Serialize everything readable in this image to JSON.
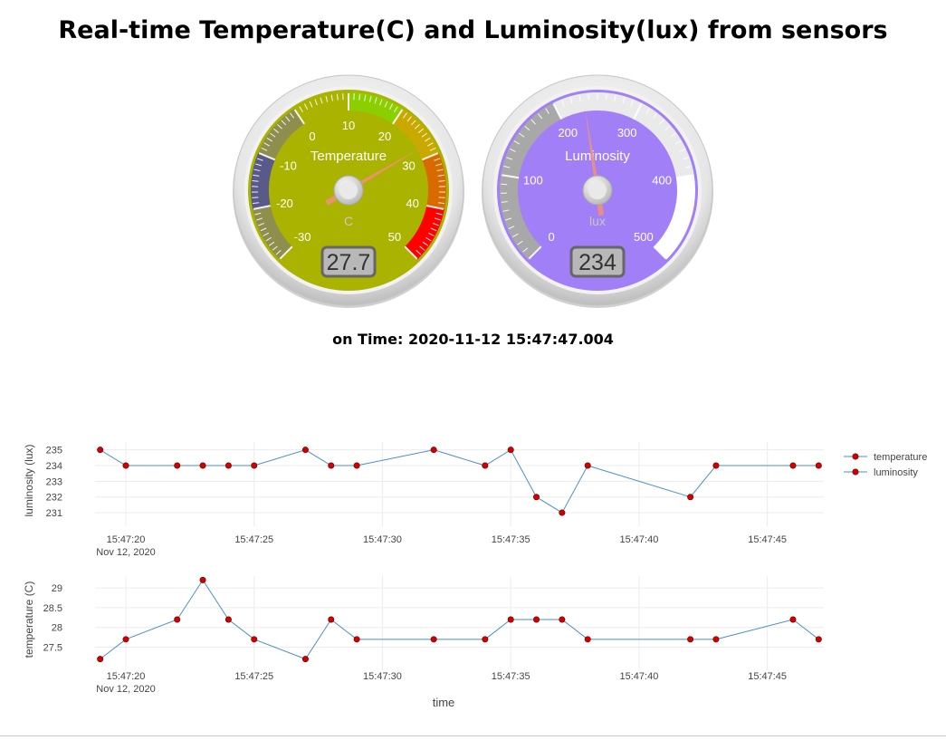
{
  "page": {
    "title": "Real-time Temperature(C) and Luminosity(lux) from sensors",
    "time_prefix": "on Time:",
    "time_value": "2020-11-12 15:47:47.004"
  },
  "gauges": [
    {
      "id": "temperature",
      "title": "Temperature",
      "units": "C",
      "value": 27.7,
      "value_text": "27.7",
      "min": -30,
      "max": 50,
      "tick_labels": [
        "-30",
        "-20",
        "-10",
        "0",
        "10",
        "20",
        "30",
        "40",
        "50"
      ],
      "plate_color": "#aab300",
      "highlights": [
        {
          "from": -30,
          "to": -20,
          "color": "#8e8e4e"
        },
        {
          "from": -20,
          "to": -10,
          "color": "#5a5a8a"
        },
        {
          "from": -10,
          "to": 0,
          "color": "#8e8e4e"
        },
        {
          "from": 10,
          "to": 20,
          "color": "#8ccf00"
        },
        {
          "from": 20,
          "to": 30,
          "color": "#c9a800"
        },
        {
          "from": 30,
          "to": 40,
          "color": "#d96a00"
        },
        {
          "from": 40,
          "to": 50,
          "color": "#ff0000"
        }
      ]
    },
    {
      "id": "luminosity",
      "title": "Luminosity",
      "units": "lux",
      "value": 234,
      "value_text": "234",
      "min": 0,
      "max": 500,
      "tick_labels": [
        "0",
        "100",
        "200",
        "300",
        "400",
        "500"
      ],
      "plate_color": "#a17ff7",
      "highlights": [
        {
          "from": 0,
          "to": 200,
          "color": "#a8a8a8"
        },
        {
          "from": 200,
          "to": 400,
          "color": "#eaeaea"
        },
        {
          "from": 400,
          "to": 500,
          "color": "#ffffff"
        }
      ]
    }
  ],
  "chart_data": [
    {
      "type": "line",
      "xlabel": "",
      "ylabel": "luminosity (lux)",
      "x_ticks": [
        "15:47:20\nNov 12, 2020",
        "15:47:25",
        "15:47:30",
        "15:47:35",
        "15:47:40",
        "15:47:45"
      ],
      "y_ticks": [
        231,
        232,
        233,
        234,
        235
      ],
      "x": [
        "15:47:19",
        "15:47:20",
        "15:47:22",
        "15:47:23",
        "15:47:24",
        "15:47:25",
        "15:47:27",
        "15:47:28",
        "15:47:29",
        "15:47:32",
        "15:47:34",
        "15:47:35",
        "15:47:36",
        "15:47:37",
        "15:47:38",
        "15:47:42",
        "15:47:43",
        "15:47:46",
        "15:47:47"
      ],
      "values": [
        235,
        234,
        234,
        234,
        234,
        234,
        235,
        234,
        234,
        235,
        234,
        235,
        232,
        231,
        234,
        232,
        234,
        234,
        234
      ],
      "grid": true,
      "line_color": "#4a90c4",
      "marker_color": "#d40000"
    },
    {
      "type": "line",
      "xlabel": "time",
      "ylabel": "temperature (C)",
      "x_ticks": [
        "15:47:20\nNov 12, 2020",
        "15:47:25",
        "15:47:30",
        "15:47:35",
        "15:47:40",
        "15:47:45"
      ],
      "y_ticks": [
        27.5,
        28,
        28.5,
        29
      ],
      "x": [
        "15:47:19",
        "15:47:20",
        "15:47:22",
        "15:47:23",
        "15:47:24",
        "15:47:25",
        "15:47:27",
        "15:47:28",
        "15:47:29",
        "15:47:32",
        "15:47:34",
        "15:47:35",
        "15:47:36",
        "15:47:37",
        "15:47:38",
        "15:47:42",
        "15:47:43",
        "15:47:46",
        "15:47:47"
      ],
      "values": [
        27.2,
        27.7,
        28.2,
        29.2,
        28.2,
        27.7,
        27.2,
        28.2,
        27.7,
        27.7,
        27.7,
        28.2,
        28.2,
        28.2,
        27.7,
        27.7,
        27.7,
        28.2,
        27.7
      ],
      "grid": true,
      "line_color": "#4a90c4",
      "marker_color": "#d40000"
    }
  ],
  "legend": {
    "placement": "top-right",
    "entries": [
      "temperature",
      "luminosity"
    ]
  }
}
